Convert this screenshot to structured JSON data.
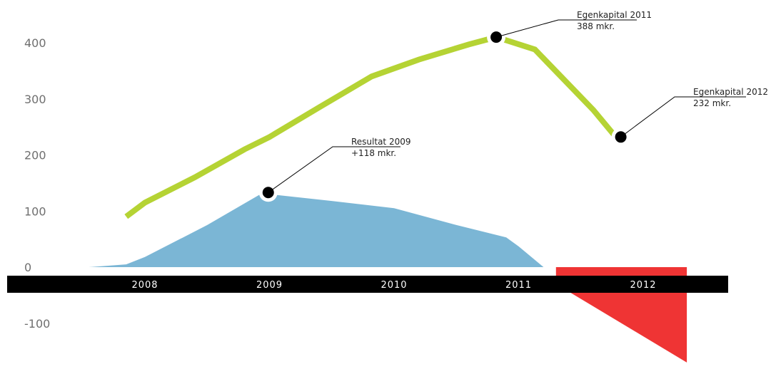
{
  "chart_data": {
    "type": "area",
    "title": "",
    "xlabel": "",
    "ylabel": "",
    "categories": [
      "2008",
      "2009",
      "2010",
      "2011",
      "2012"
    ],
    "yticks": [
      400,
      300,
      200,
      100,
      0,
      -100
    ],
    "yticks_labels": [
      "400",
      "300",
      "200",
      "100",
      "0",
      "-100"
    ],
    "ylim": [
      -170,
      455
    ],
    "grid": false,
    "legend": "none",
    "series": [
      {
        "kind": "line",
        "color": "#b5d334",
        "x": [
          2007.85,
          2008.0,
          2008.4,
          2008.8,
          2009.0,
          2009.4,
          2009.82,
          2010.2,
          2010.6,
          2010.82,
          2011.13,
          2011.6,
          2011.78
        ],
        "y": [
          90,
          115,
          160,
          210,
          232,
          285,
          340,
          370,
          397,
          410,
          388,
          280,
          232
        ]
      },
      {
        "kind": "area",
        "color": "#7bb6d5",
        "x": [
          2007.55,
          2007.85,
          2008.0,
          2008.5,
          2008.95,
          2009.0,
          2009.5,
          2010.0,
          2010.5,
          2010.9,
          2011.0,
          2011.2,
          2011.3
        ],
        "y": [
          0,
          5,
          18,
          75,
          133,
          130,
          118,
          105,
          75,
          53,
          37,
          0,
          0
        ]
      },
      {
        "kind": "area",
        "color": "#ef3434",
        "x": [
          2011.3,
          2012.35,
          2012.35
        ],
        "y": [
          -30,
          -170,
          -30
        ]
      }
    ],
    "annotations": [
      {
        "marker_x": 2008.99,
        "marker_y": 133,
        "white_halo": true,
        "line1": "Resultat 2009",
        "line2": "+118 mkr."
      },
      {
        "marker_x": 2010.82,
        "marker_y": 410,
        "white_halo": true,
        "line1": "Egenkapital 2011",
        "line2": "388 mkr."
      },
      {
        "marker_x": 2011.82,
        "marker_y": 232,
        "white_halo": true,
        "line1": "Egenkapital 2012",
        "line2": "232 mkr."
      }
    ]
  }
}
